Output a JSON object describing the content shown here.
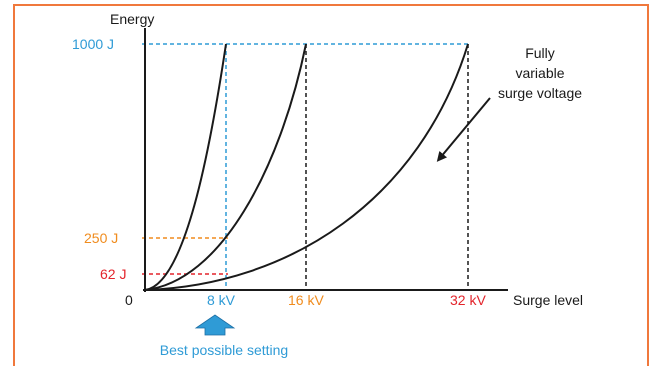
{
  "colors": {
    "frame": "#f0783c",
    "blue": "#2f9bd6",
    "orange": "#f08c1e",
    "red": "#e3242b",
    "black": "#1a1a1a"
  },
  "axes": {
    "y_label": "Energy",
    "x_label": "Surge level",
    "origin_label": "0"
  },
  "energy_levels": [
    {
      "label": "1000 J",
      "color": "#2f9bd6"
    },
    {
      "label": "250 J",
      "color": "#f08c1e"
    },
    {
      "label": "62 J",
      "color": "#e3242b"
    }
  ],
  "voltage_levels": [
    {
      "label": "8 kV",
      "color": "#2f9bd6"
    },
    {
      "label": "16 kV",
      "color": "#f08c1e"
    },
    {
      "label": "32 kV",
      "color": "#e3242b"
    }
  ],
  "annotation": {
    "line1": "Fully",
    "line2": "variable",
    "line3": "surge voltage"
  },
  "callout": {
    "text": "Best possible setting",
    "icon": "up-arrow-icon"
  }
}
